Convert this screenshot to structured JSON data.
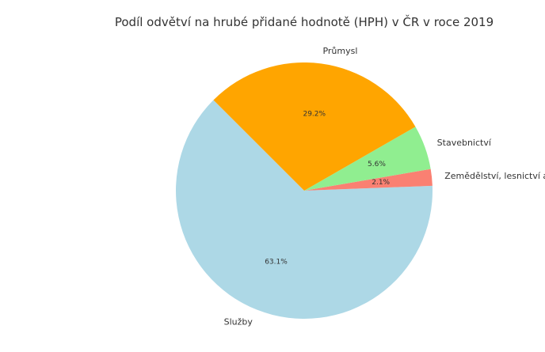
{
  "chart_data": {
    "type": "pie",
    "title": "Podíl odvětví na hrubé přidané hodnotě (HPH) v ČR v roce 2019",
    "slices": [
      {
        "label": "Služby",
        "value": 63.1,
        "pct_label": "63.1%",
        "color": "#add8e6"
      },
      {
        "label": "Zemědělství, lesnictví a rybářství",
        "value": 2.1,
        "pct_label": "2.1%",
        "color": "#fa8072"
      },
      {
        "label": "Stavebnictví",
        "value": 5.6,
        "pct_label": "5.6%",
        "color": "#90ee90"
      },
      {
        "label": "Průmysl",
        "value": 29.2,
        "pct_label": "29.2%",
        "color": "#ffa500"
      }
    ]
  }
}
